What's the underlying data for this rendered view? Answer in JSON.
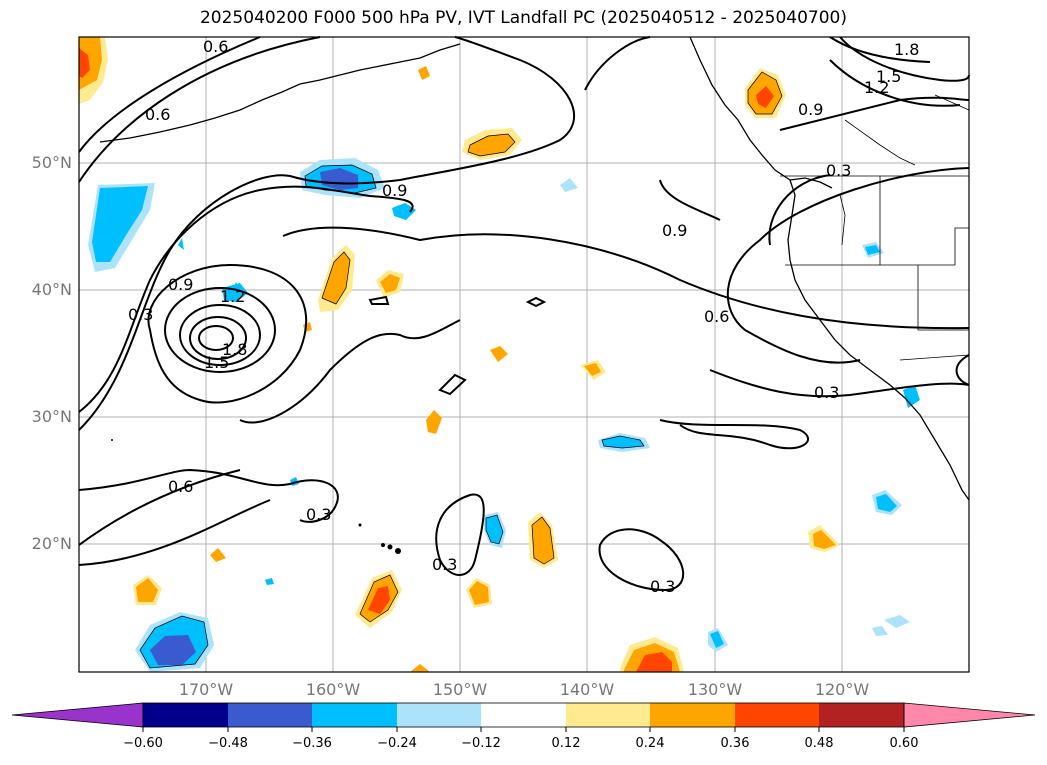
{
  "title": "2025040200 F000 500 hPa PV, IVT Landfall PC (2025040512 - 2025040700)",
  "lat_labels": [
    "50°N",
    "40°N",
    "30°N",
    "20°N"
  ],
  "lon_labels": [
    "170°W",
    "160°W",
    "150°W",
    "140°W",
    "130°W",
    "120°W"
  ],
  "contour_labels": [
    "0.6",
    "0.6",
    "0.3",
    "0.9",
    "1.2",
    "1.8",
    "1.5",
    "0.9",
    "0.6",
    "0.3",
    "0.3",
    "0.6",
    "0.3",
    "0.9",
    "0.3",
    "0.3",
    "0.9",
    "1.2",
    "1.5",
    "1.8"
  ],
  "colorbar": {
    "ticks": [
      "−0.60",
      "−0.48",
      "−0.36",
      "−0.24",
      "−0.12",
      "0.12",
      "0.24",
      "0.36",
      "0.48",
      "0.60"
    ],
    "colors": [
      "#9933cc",
      "#00008b",
      "#3a5bd0",
      "#00bfff",
      "#ade3fa",
      "#ffffff",
      "#ffea8f",
      "#ffa500",
      "#ff4500",
      "#b22222",
      "#ff88aa"
    ]
  }
}
